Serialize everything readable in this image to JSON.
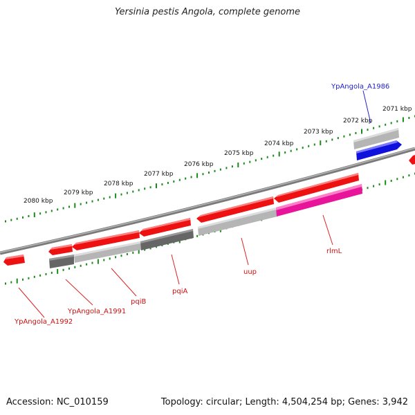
{
  "title": "Yersinia pestis Angola, complete genome",
  "footer": {
    "accession": "Accession: NC_010159",
    "topology": "Topology: circular; Length: 4,504,254 bp; Genes: 3,942"
  },
  "colors": {
    "backbone": "#7a7a7a",
    "tick": "#1a8a1a",
    "gene_red": "#ee1111",
    "gene_magenta": "#e8159a",
    "gene_blue": "#1111dd",
    "gene_gray": "#666666",
    "gene_lightgray": "#b5b5b5",
    "label_red": "#cc1111",
    "label_blue": "#2222cc"
  },
  "scale_labels": [
    "2080 kbp",
    "2079 kbp",
    "2078 kbp",
    "2077 kbp",
    "2076 kbp",
    "2075 kbp",
    "2074 kbp",
    "2073 kbp",
    "2072 kbp",
    "2071 kbp"
  ],
  "gene_labels": [
    {
      "name": "YpAngola_A1992",
      "color": "red"
    },
    {
      "name": "YpAngola_A1991",
      "color": "red"
    },
    {
      "name": "pqiB",
      "color": "red"
    },
    {
      "name": "pqiA",
      "color": "red"
    },
    {
      "name": "uup",
      "color": "red"
    },
    {
      "name": "rlmL",
      "color": "red"
    },
    {
      "name": "YpAngola_A1986",
      "color": "blue"
    }
  ]
}
